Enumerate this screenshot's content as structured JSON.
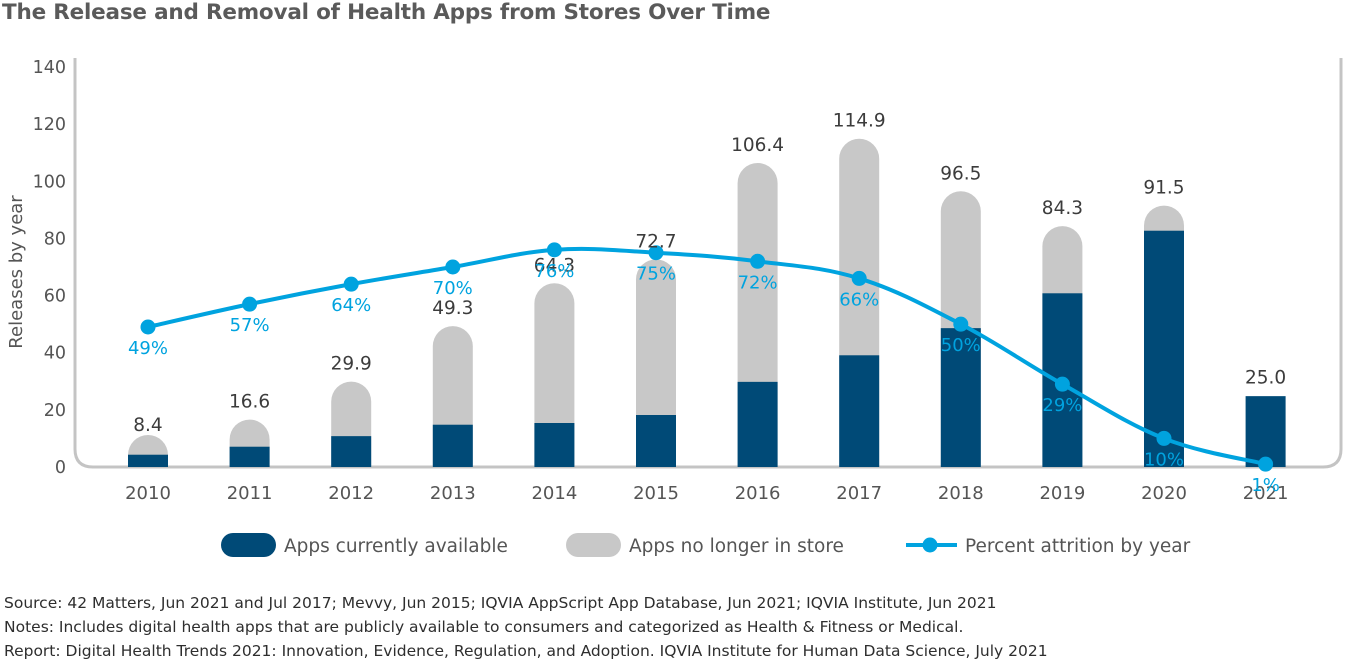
{
  "title": "The Release and Removal of Health Apps from Stores Over Time",
  "colors": {
    "available": "#004a77",
    "removed": "#c8c8c8",
    "attrition": "#00a3df",
    "axis": "#c4c4c4",
    "text": "#3c3c3c"
  },
  "chart_data": {
    "type": "bar",
    "stacked": true,
    "title": "The Release and Removal of Health Apps from Stores Over Time",
    "ylabel": "Releases by year",
    "xlabel": "",
    "ylim": [
      0,
      140
    ],
    "yticks": [
      "0",
      "20",
      "40",
      "60",
      "80",
      "100",
      "120",
      "140"
    ],
    "categories": [
      "2010",
      "2011",
      "2012",
      "2013",
      "2014",
      "2015",
      "2016",
      "2017",
      "2018",
      "2019",
      "2020",
      "2021"
    ],
    "totals": [
      8.4,
      16.6,
      29.9,
      49.3,
      64.3,
      72.7,
      106.4,
      114.9,
      96.5,
      84.3,
      91.5,
      25.0
    ],
    "total_labels": [
      "8.4",
      "16.6",
      "29.9",
      "49.3",
      "64.3",
      "72.7",
      "106.4",
      "114.9",
      "96.5",
      "84.3",
      "91.5",
      "25.0"
    ],
    "series": [
      {
        "name": "Apps currently available",
        "type": "bar",
        "values": [
          4.3,
          7.1,
          10.8,
          14.8,
          15.4,
          18.2,
          29.8,
          39.1,
          48.6,
          60.8,
          82.7,
          24.8
        ]
      },
      {
        "name": "Apps no longer in store",
        "type": "bar",
        "values": [
          4.1,
          9.5,
          19.1,
          34.5,
          48.9,
          54.5,
          76.6,
          75.8,
          47.9,
          23.5,
          8.8,
          0.2
        ]
      },
      {
        "name": "Percent attrition by year",
        "type": "line",
        "values": [
          49,
          57,
          64,
          70,
          76,
          75,
          72,
          66,
          50,
          29,
          10,
          1
        ],
        "labels": [
          "49%",
          "57%",
          "64%",
          "70%",
          "76%",
          "75%",
          "72%",
          "66%",
          "50%",
          "29%",
          "10%",
          "1%"
        ]
      }
    ],
    "legend": {
      "position": "bottom",
      "items": [
        "Apps currently available",
        "Apps no longer in store",
        "Percent attrition by year"
      ]
    },
    "grid": false
  },
  "footnotes": {
    "source": "Source: 42 Matters, Jun 2021 and Jul 2017; Mevvy, Jun 2015; IQVIA AppScript App Database, Jun 2021; IQVIA Institute, Jun 2021",
    "notes": "Notes: Includes digital health apps that are publicly available to consumers and categorized as Health & Fitness or Medical.",
    "report": "Report: Digital Health Trends 2021: Innovation, Evidence, Regulation, and Adoption. IQVIA Institute for Human Data Science, July 2021"
  }
}
